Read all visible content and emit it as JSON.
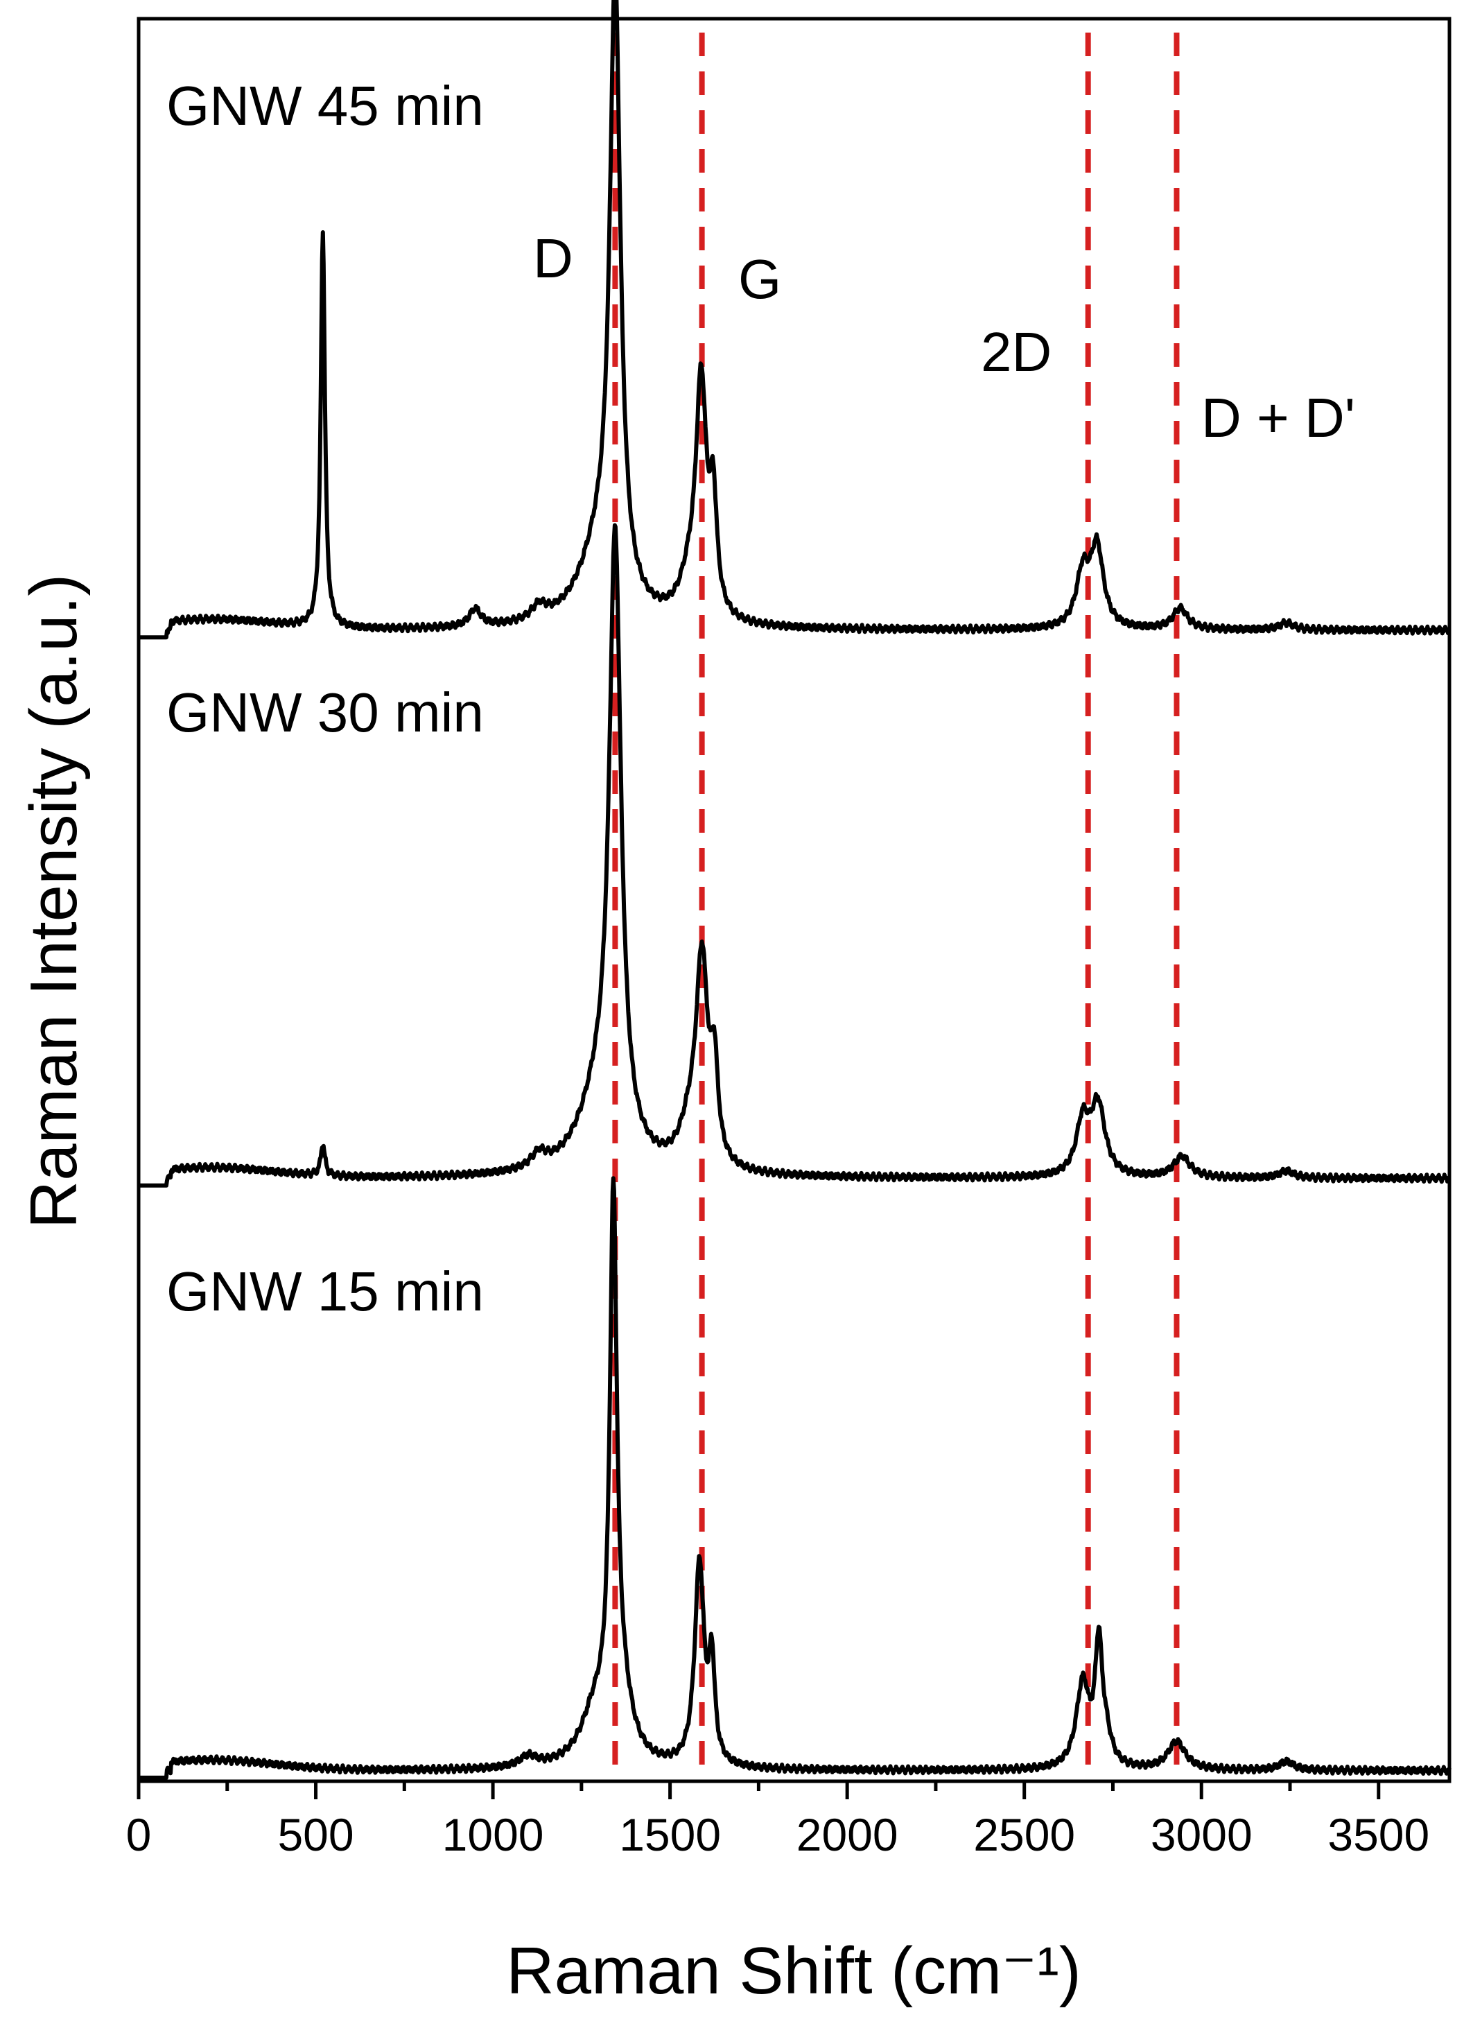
{
  "chart_data": {
    "type": "line",
    "xlabel": "Raman Shift (cm⁻¹)",
    "ylabel": "Raman Intensity (a.u.)",
    "xlim": [
      0,
      3700
    ],
    "ylim": [
      0,
      1
    ],
    "grid": false,
    "x_ticks": [
      0,
      500,
      1000,
      1500,
      2000,
      2500,
      3000,
      3500
    ],
    "x_tick_labels": [
      "0",
      "500",
      "1000",
      "1500",
      "2000",
      "2500",
      "3000",
      "3500"
    ],
    "y_ticks_shown": false,
    "peak_markers": [
      {
        "label": "D",
        "x": 1345
      },
      {
        "label": "G",
        "x": 1590
      },
      {
        "label": "2D",
        "x": 2680
      },
      {
        "label": "D + D'",
        "x": 2930
      }
    ],
    "marker_color": "#d62020",
    "line_color": "#000000",
    "series": [
      {
        "name": "GNW 45 min",
        "offset": 0.653,
        "peaks": [
          {
            "x": 520,
            "h": 0.225,
            "w": 7
          },
          {
            "x": 950,
            "h": 0.01,
            "w": 20
          },
          {
            "x": 1130,
            "h": 0.008,
            "w": 25
          },
          {
            "x": 1300,
            "h": 0.04,
            "w": 70
          },
          {
            "x": 1345,
            "h": 0.345,
            "w": 18
          },
          {
            "x": 1555,
            "h": 0.02,
            "w": 35
          },
          {
            "x": 1588,
            "h": 0.13,
            "w": 18
          },
          {
            "x": 1622,
            "h": 0.06,
            "w": 12
          },
          {
            "x": 2665,
            "h": 0.03,
            "w": 22
          },
          {
            "x": 2705,
            "h": 0.045,
            "w": 22
          },
          {
            "x": 2940,
            "h": 0.012,
            "w": 25
          },
          {
            "x": 3240,
            "h": 0.004,
            "w": 25
          }
        ]
      },
      {
        "name": "GNW 30 min",
        "offset": 0.342,
        "peaks": [
          {
            "x": 520,
            "h": 0.018,
            "w": 7
          },
          {
            "x": 1130,
            "h": 0.008,
            "w": 25
          },
          {
            "x": 1300,
            "h": 0.04,
            "w": 70
          },
          {
            "x": 1345,
            "h": 0.34,
            "w": 20
          },
          {
            "x": 1555,
            "h": 0.02,
            "w": 35
          },
          {
            "x": 1590,
            "h": 0.115,
            "w": 20
          },
          {
            "x": 1625,
            "h": 0.05,
            "w": 12
          },
          {
            "x": 2665,
            "h": 0.03,
            "w": 22
          },
          {
            "x": 2708,
            "h": 0.04,
            "w": 24
          },
          {
            "x": 2945,
            "h": 0.012,
            "w": 28
          },
          {
            "x": 3240,
            "h": 0.004,
            "w": 25
          }
        ]
      },
      {
        "name": "GNW 15 min",
        "offset": 0.006,
        "peaks": [
          {
            "x": 1100,
            "h": 0.006,
            "w": 30
          },
          {
            "x": 1290,
            "h": 0.03,
            "w": 50
          },
          {
            "x": 1340,
            "h": 0.3,
            "w": 12
          },
          {
            "x": 1365,
            "h": 0.03,
            "w": 35
          },
          {
            "x": 1583,
            "h": 0.115,
            "w": 16
          },
          {
            "x": 1618,
            "h": 0.055,
            "w": 10
          },
          {
            "x": 2665,
            "h": 0.048,
            "w": 22
          },
          {
            "x": 2710,
            "h": 0.065,
            "w": 12
          },
          {
            "x": 2730,
            "h": 0.015,
            "w": 20
          },
          {
            "x": 2930,
            "h": 0.016,
            "w": 30
          },
          {
            "x": 3240,
            "h": 0.005,
            "w": 25
          }
        ]
      }
    ]
  }
}
